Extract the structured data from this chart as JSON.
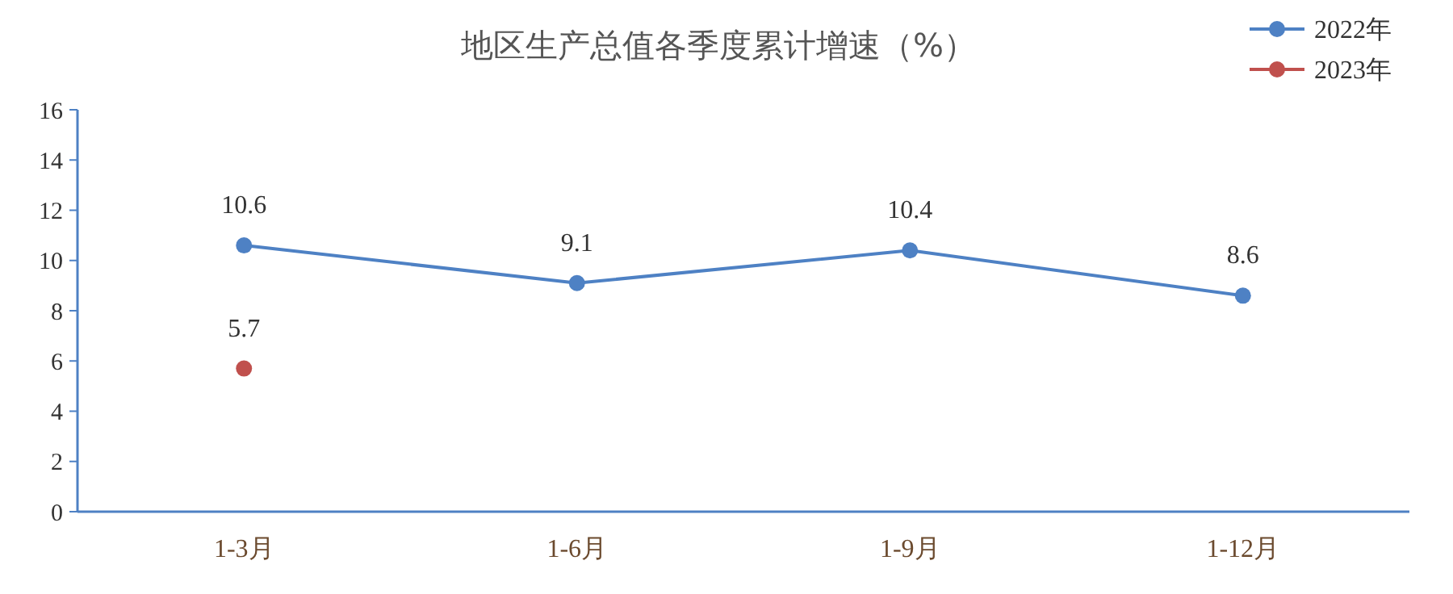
{
  "chart_data": {
    "type": "line",
    "title": "地区生产总值各季度累计增速（%）",
    "categories": [
      "1-3月",
      "1-6月",
      "1-9月",
      "1-12月"
    ],
    "series": [
      {
        "name": "2022年",
        "color": "#4e81c4",
        "values": [
          10.6,
          9.1,
          10.4,
          8.6
        ]
      },
      {
        "name": "2023年",
        "color": "#c0504d",
        "values": [
          5.7,
          null,
          null,
          null
        ]
      }
    ],
    "ylim": [
      0,
      16
    ],
    "yticks": [
      0,
      2,
      4,
      6,
      8,
      10,
      12,
      14,
      16
    ],
    "grid": false,
    "legend": "top right",
    "marker": "circle",
    "line_style": "solid",
    "data_labels": true
  }
}
